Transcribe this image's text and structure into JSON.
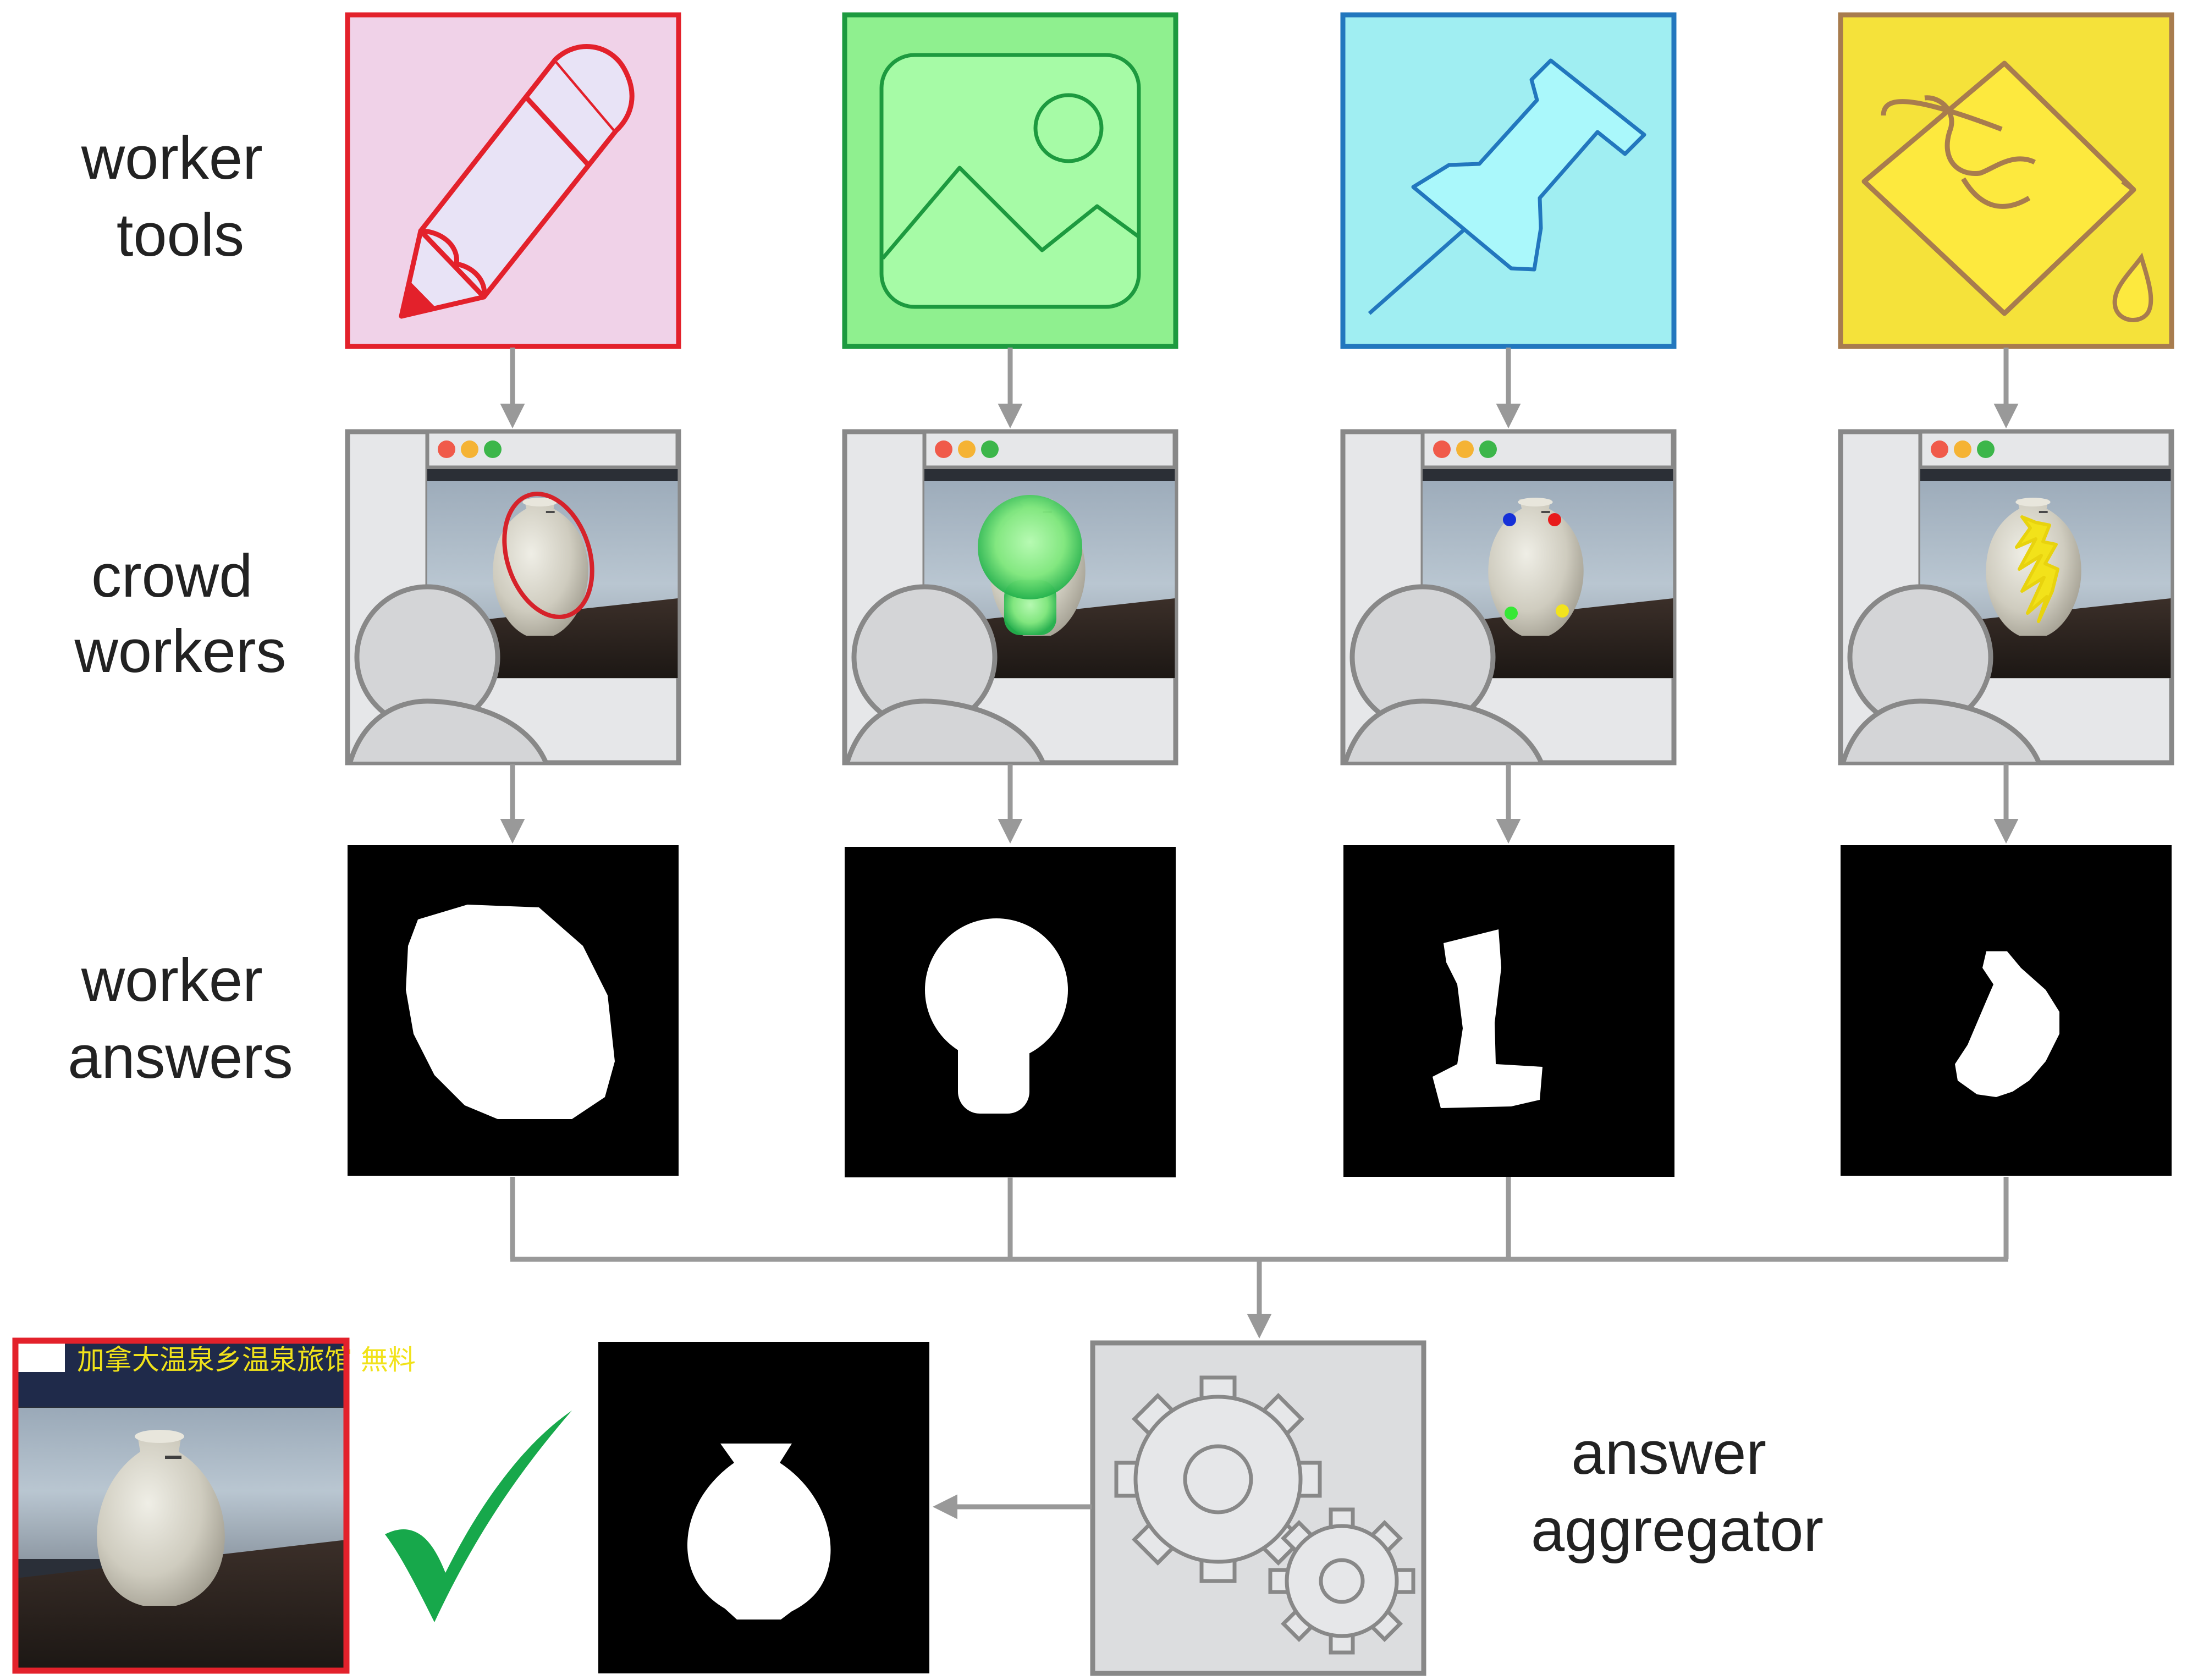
{
  "row_labels": {
    "tools": [
      "worker",
      "tools"
    ],
    "workers": [
      "crowd",
      "workers"
    ],
    "answers": [
      "worker",
      "answers"
    ],
    "aggregator": [
      "answer",
      "aggregator"
    ]
  },
  "tools": [
    {
      "icon": "pencil-icon",
      "fill": "#f0d2e8",
      "border": "#e3212b"
    },
    {
      "icon": "image-icon",
      "fill": "#8ff08f",
      "border": "#1d9a3f"
    },
    {
      "icon": "pushpin-icon",
      "fill": "#a0eef2",
      "border": "#2277be"
    },
    {
      "icon": "paint-bucket-icon",
      "fill": "#f5e23a",
      "border": "#a87c4e"
    }
  ],
  "colors": {
    "arrow": "#999999",
    "window_frame": "#888888",
    "window_fill": "#e6e7e9",
    "traffic_red": "#f05a4a",
    "traffic_yellow": "#f5b334",
    "traffic_green": "#3cb64a",
    "check": "#17a84b",
    "result_border": "#e3212b"
  },
  "result_banner_text": "加拿大温泉乡温泉旅馆 無料"
}
